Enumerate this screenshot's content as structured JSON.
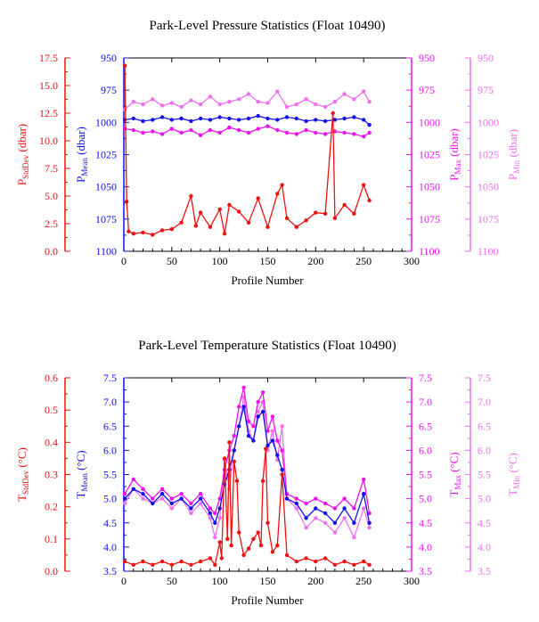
{
  "colors": {
    "red": "#ee1111",
    "blue": "#1010ee",
    "magenta": "#ee10ee",
    "pink": "#f070f0",
    "black": "#000000"
  },
  "chart_data": [
    {
      "type": "line",
      "title": "Park-Level Pressure Statistics (Float 10490)",
      "xlabel": "Profile Number",
      "xlim": [
        0,
        300
      ],
      "xticks": [
        "0",
        "50",
        "100",
        "150",
        "200",
        "250",
        "300"
      ],
      "axes": {
        "stddev": {
          "label_main": "P",
          "label_sub": "StdDev",
          "label_unit": " (dbar)",
          "lim": [
            0,
            17.5
          ],
          "ticks": [
            "0.0",
            "2.5",
            "5.0",
            "7.5",
            "10.0",
            "12.5",
            "15.0",
            "17.5"
          ]
        },
        "mean": {
          "label_main": "P",
          "label_sub": "Mean",
          "label_unit": " (dbar)",
          "lim": [
            1100,
            950
          ],
          "ticks": [
            "1100",
            "1075",
            "1050",
            "1025",
            "1000",
            "975",
            "950"
          ]
        },
        "max": {
          "label_main": "P",
          "label_sub": "Max",
          "label_unit": " (dbar)",
          "lim": [
            1100,
            950
          ],
          "ticks": [
            "1100",
            "1075",
            "1050",
            "1025",
            "1000",
            "975",
            "950"
          ]
        },
        "min": {
          "label_main": "P",
          "label_sub": "Min",
          "label_unit": " (dbar)",
          "lim": [
            1100,
            950
          ],
          "ticks": [
            "1100",
            "1075",
            "1050",
            "1025",
            "1000",
            "975",
            "950"
          ]
        }
      },
      "series": [
        {
          "axis": "min",
          "x": [
            1,
            10,
            20,
            30,
            40,
            50,
            60,
            70,
            80,
            90,
            100,
            110,
            120,
            130,
            140,
            150,
            160,
            170,
            180,
            190,
            200,
            210,
            220,
            230,
            240,
            250,
            256
          ],
          "y": [
            990,
            984,
            986,
            982,
            987,
            985,
            988,
            983,
            986,
            980,
            986,
            984,
            982,
            978,
            984,
            985,
            976,
            988,
            986,
            982,
            986,
            988,
            984,
            978,
            982,
            976,
            984
          ]
        },
        {
          "axis": "max",
          "x": [
            1,
            10,
            20,
            30,
            40,
            50,
            60,
            70,
            80,
            90,
            100,
            110,
            120,
            130,
            140,
            150,
            160,
            170,
            180,
            190,
            200,
            210,
            220,
            230,
            240,
            250,
            256
          ],
          "y": [
            1005,
            1006,
            1008,
            1007,
            1009,
            1005,
            1008,
            1006,
            1010,
            1006,
            1008,
            1004,
            1006,
            1008,
            1005,
            1003,
            1006,
            1008,
            1009,
            1006,
            1008,
            1009,
            1007,
            1008,
            1009,
            1011,
            1008
          ]
        },
        {
          "axis": "mean",
          "x": [
            1,
            10,
            20,
            30,
            40,
            50,
            60,
            70,
            80,
            90,
            100,
            110,
            120,
            130,
            140,
            150,
            160,
            170,
            180,
            190,
            200,
            210,
            220,
            230,
            240,
            250,
            256
          ],
          "y": [
            998,
            997,
            999,
            998,
            996,
            998,
            997,
            999,
            997,
            998,
            996,
            997,
            998,
            997,
            995,
            997,
            998,
            996,
            997,
            999,
            998,
            999,
            998,
            997,
            996,
            998,
            1002
          ]
        },
        {
          "axis": "stddev",
          "x": [
            1,
            3,
            5,
            10,
            20,
            30,
            40,
            50,
            60,
            70,
            75,
            80,
            90,
            100,
            105,
            110,
            120,
            130,
            140,
            150,
            160,
            165,
            170,
            180,
            190,
            200,
            210,
            218,
            220,
            230,
            240,
            250,
            256
          ],
          "y": [
            16.8,
            4.5,
            1.8,
            1.6,
            1.7,
            1.5,
            1.9,
            2.0,
            2.6,
            5.0,
            2.3,
            3.5,
            2.2,
            3.8,
            1.6,
            4.2,
            3.6,
            2.6,
            4.8,
            2.2,
            5.2,
            6.0,
            3.0,
            2.2,
            2.8,
            3.5,
            3.4,
            12.5,
            3.0,
            4.2,
            3.4,
            6.0,
            4.6
          ]
        }
      ]
    },
    {
      "type": "line",
      "title": "Park-Level Temperature Statistics (Float 10490)",
      "xlabel": "Profile Number",
      "xlim": [
        0,
        300
      ],
      "xticks": [
        "0",
        "50",
        "100",
        "150",
        "200",
        "250",
        "300"
      ],
      "axes": {
        "stddev": {
          "label_main": "T",
          "label_sub": "StdDev",
          "label_unit": " (°C)",
          "lim": [
            0,
            0.6
          ],
          "ticks": [
            "0.0",
            "0.1",
            "0.2",
            "0.3",
            "0.4",
            "0.5",
            "0.6"
          ]
        },
        "mean": {
          "label_main": "T",
          "label_sub": "Mean",
          "label_unit": " (°C)",
          "lim": [
            3.5,
            7.5
          ],
          "ticks": [
            "3.5",
            "4.0",
            "4.5",
            "5.0",
            "5.5",
            "6.0",
            "6.5",
            "7.0",
            "7.5"
          ]
        },
        "max": {
          "label_main": "T",
          "label_sub": "Max",
          "label_unit": " (°C)",
          "lim": [
            3.5,
            7.5
          ],
          "ticks": [
            "3.5",
            "4.0",
            "4.5",
            "5.0",
            "5.5",
            "6.0",
            "6.5",
            "7.0",
            "7.5"
          ]
        },
        "min": {
          "label_main": "T",
          "label_sub": "Min",
          "label_unit": " (°C)",
          "lim": [
            3.5,
            7.5
          ],
          "ticks": [
            "3.5",
            "4.0",
            "4.5",
            "5.0",
            "5.5",
            "6.0",
            "6.5",
            "7.0",
            "7.5"
          ]
        }
      },
      "series": [
        {
          "axis": "min",
          "x": [
            1,
            10,
            20,
            30,
            40,
            50,
            60,
            70,
            80,
            90,
            95,
            100,
            105,
            110,
            115,
            120,
            125,
            130,
            135,
            140,
            145,
            150,
            155,
            160,
            165,
            170,
            180,
            190,
            200,
            210,
            220,
            230,
            240,
            250,
            256
          ],
          "y": [
            4.9,
            5.2,
            5.0,
            4.9,
            5.0,
            4.8,
            5.0,
            4.7,
            4.9,
            4.6,
            4.2,
            4.6,
            5.8,
            5.2,
            6.0,
            6.5,
            7.1,
            6.4,
            6.2,
            6.8,
            7.0,
            6.0,
            6.4,
            5.8,
            6.5,
            5.0,
            4.8,
            4.4,
            4.6,
            4.5,
            4.3,
            4.6,
            4.2,
            4.8,
            4.4
          ]
        },
        {
          "axis": "max",
          "x": [
            1,
            10,
            20,
            30,
            40,
            50,
            60,
            70,
            80,
            90,
            95,
            100,
            105,
            110,
            115,
            120,
            125,
            130,
            135,
            140,
            145,
            150,
            155,
            160,
            165,
            170,
            180,
            190,
            200,
            210,
            220,
            230,
            240,
            250,
            256
          ],
          "y": [
            5.1,
            5.4,
            5.2,
            5.0,
            5.2,
            5.0,
            5.1,
            4.9,
            5.1,
            4.8,
            4.7,
            5.0,
            5.6,
            6.0,
            6.3,
            6.9,
            7.3,
            6.6,
            6.5,
            7.0,
            7.2,
            6.4,
            6.7,
            6.2,
            6.0,
            5.1,
            5.0,
            4.9,
            5.0,
            4.9,
            4.8,
            5.0,
            4.8,
            5.4,
            4.7
          ]
        },
        {
          "axis": "mean",
          "x": [
            1,
            10,
            20,
            30,
            40,
            50,
            60,
            70,
            80,
            90,
            95,
            100,
            105,
            110,
            115,
            120,
            125,
            130,
            135,
            140,
            145,
            150,
            155,
            160,
            165,
            170,
            180,
            190,
            200,
            210,
            220,
            230,
            240,
            250,
            256
          ],
          "y": [
            5.0,
            5.2,
            5.1,
            4.9,
            5.1,
            4.9,
            5.0,
            4.8,
            5.0,
            4.7,
            4.5,
            4.8,
            5.3,
            5.6,
            6.0,
            6.5,
            6.9,
            6.3,
            6.2,
            6.7,
            6.8,
            6.1,
            6.2,
            5.9,
            5.6,
            5.0,
            4.9,
            4.6,
            4.8,
            4.7,
            4.5,
            4.8,
            4.5,
            5.1,
            4.5
          ]
        },
        {
          "axis": "stddev",
          "x": [
            1,
            10,
            20,
            30,
            40,
            50,
            60,
            70,
            80,
            90,
            95,
            100,
            102,
            105,
            108,
            110,
            112,
            115,
            118,
            120,
            125,
            130,
            135,
            140,
            143,
            145,
            148,
            150,
            155,
            160,
            165,
            170,
            180,
            190,
            200,
            210,
            220,
            230,
            240,
            250,
            256
          ],
          "y": [
            0.03,
            0.02,
            0.03,
            0.02,
            0.03,
            0.02,
            0.03,
            0.02,
            0.03,
            0.04,
            0.02,
            0.09,
            0.04,
            0.35,
            0.1,
            0.4,
            0.08,
            0.34,
            0.28,
            0.12,
            0.05,
            0.07,
            0.1,
            0.12,
            0.08,
            0.28,
            0.38,
            0.15,
            0.06,
            0.08,
            0.3,
            0.05,
            0.03,
            0.04,
            0.03,
            0.04,
            0.02,
            0.03,
            0.02,
            0.03,
            0.02
          ]
        }
      ]
    }
  ]
}
